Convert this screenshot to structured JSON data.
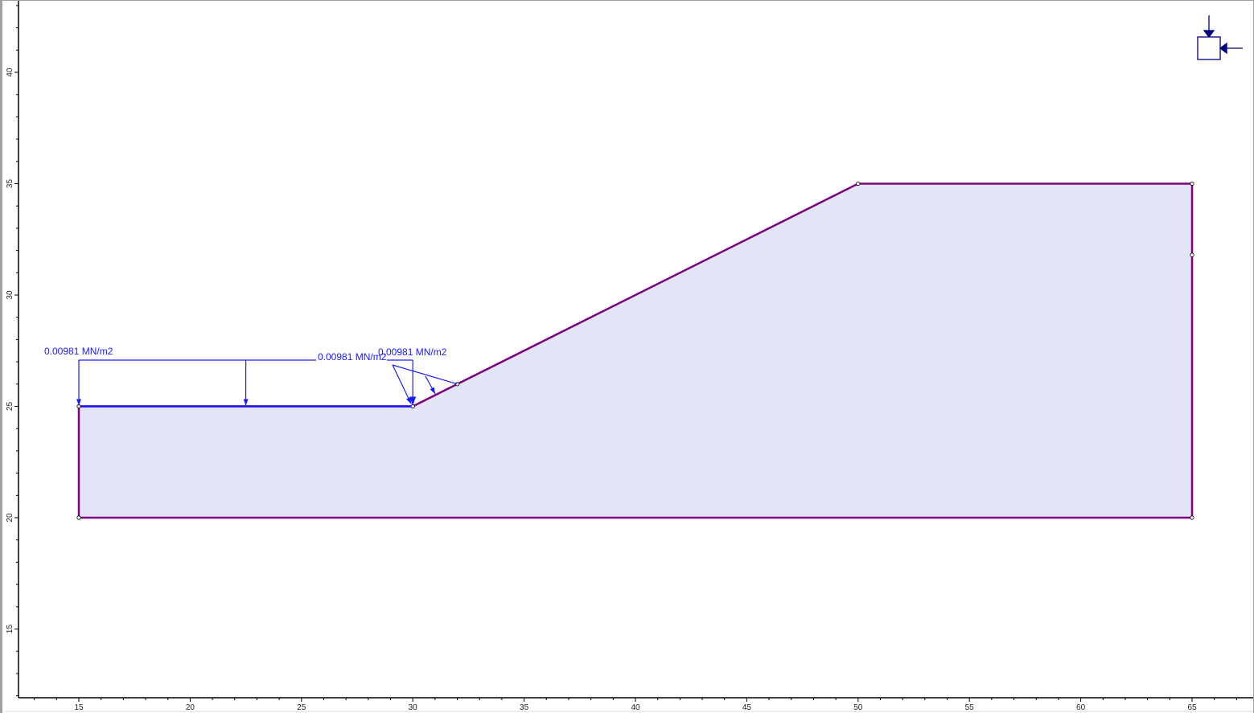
{
  "x_axis": {
    "min": 15,
    "max": 65,
    "ticks": [
      15,
      20,
      25,
      30,
      35,
      40,
      45,
      50,
      55,
      60,
      65
    ]
  },
  "y_axis": {
    "ticks": [
      15,
      20,
      25,
      30,
      35,
      40
    ]
  },
  "boundary": {
    "vertices": [
      [
        15,
        20
      ],
      [
        15,
        25
      ],
      [
        30,
        25
      ],
      [
        32,
        26
      ],
      [
        50,
        35
      ],
      [
        65,
        35
      ],
      [
        65,
        31.8
      ],
      [
        65,
        20
      ]
    ],
    "fill_color": "#e3e4f7",
    "line_color": "#800080"
  },
  "loads": [
    {
      "label": "0.00981 MN/m2",
      "type": "uniform",
      "from": [
        15,
        25
      ],
      "to": [
        30,
        25
      ],
      "color": "#1a1aff"
    },
    {
      "label": "0.00981 MN/m2",
      "type": "point",
      "at": [
        30,
        25
      ],
      "color": "#1a1aff"
    },
    {
      "label": "0.00981 MN/m2",
      "type": "uniform",
      "from": [
        30,
        25
      ],
      "to": [
        32,
        26
      ],
      "color": "#1a1aff"
    }
  ],
  "support_icon": "boundary-condition-icon",
  "accent_color": "#00007f"
}
